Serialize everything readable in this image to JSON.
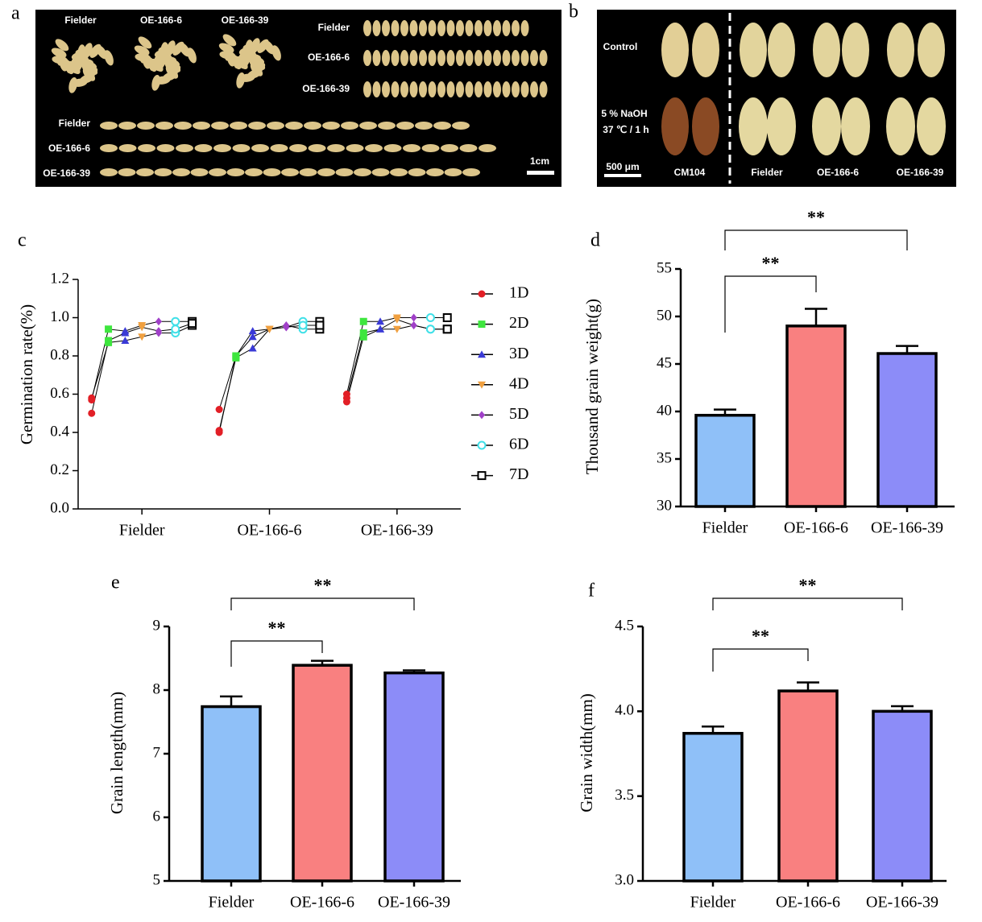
{
  "photos": {
    "a": {
      "label": "a",
      "labels": [
        "Fielder",
        "OE-166-6",
        "OE-166-39",
        "Fielder",
        "OE-166-6",
        "OE-166-39",
        "Fielder",
        "OE-166-6",
        "OE-166-39",
        "1cm"
      ]
    },
    "b": {
      "label": "b",
      "labels": [
        "Control",
        "5 % NaOH",
        "37 ℃ / 1 h",
        "500 μm",
        "CM104",
        "Fielder",
        "OE-166-6",
        "OE-166-39"
      ]
    }
  },
  "chart_data": [
    {
      "label": "c",
      "type": "scatter",
      "ylabel": "Germination rate(%)",
      "categories": [
        "Fielder",
        "OE-166-6",
        "OE-166-39"
      ],
      "ylim": [
        0,
        1.2
      ],
      "yticks": [
        {
          "value": 0,
          "label": "0.0"
        },
        0.2,
        0.4,
        0.6,
        0.8,
        {
          "value": 1,
          "label": "1.0"
        },
        1.2
      ],
      "series": [
        {
          "name": "1D",
          "color": "#e21f26",
          "marker": "circle",
          "values": [
            [
              0.57,
              0.58,
              0.5
            ],
            [
              0.52,
              0.41,
              0.4
            ],
            [
              0.6,
              0.56,
              0.58
            ]
          ]
        },
        {
          "name": "2D",
          "color": "#3ee63e",
          "marker": "square",
          "values": [
            [
              0.94,
              0.87,
              0.88
            ],
            [
              0.8,
              0.79,
              0.8
            ],
            [
              0.98,
              0.9,
              0.92
            ]
          ]
        },
        {
          "name": "3D",
          "color": "#3a3ad6",
          "marker": "triangle",
          "values": [
            [
              0.93,
              0.88,
              0.92
            ],
            [
              0.93,
              0.84,
              0.9
            ],
            [
              0.98,
              0.94,
              0.94
            ]
          ]
        },
        {
          "name": "4D",
          "color": "#f0a040",
          "marker": "triangle-down",
          "values": [
            [
              0.96,
              0.9,
              0.95
            ],
            [
              0.94,
              0.94,
              0.94
            ],
            [
              1.0,
              0.94,
              0.99
            ]
          ]
        },
        {
          "name": "5D",
          "color": "#a040c8",
          "marker": "diamond",
          "values": [
            [
              0.98,
              0.92,
              0.93
            ],
            [
              0.95,
              0.96,
              0.95
            ],
            [
              1.0,
              0.96,
              0.96
            ]
          ]
        },
        {
          "name": "6D",
          "color": "#40e0e8",
          "marker": "circle-open",
          "values": [
            [
              0.98,
              0.92,
              0.94
            ],
            [
              0.98,
              0.94,
              0.96
            ],
            [
              1.0,
              0.94,
              0.94
            ]
          ]
        },
        {
          "name": "7D",
          "color": "#000000",
          "marker": "square-open",
          "values": [
            [
              0.98,
              0.96,
              0.97
            ],
            [
              0.98,
              0.94,
              0.96
            ],
            [
              1.0,
              0.94,
              0.94
            ]
          ]
        }
      ]
    },
    {
      "label": "d",
      "type": "bar",
      "ylabel": "Thousand grain weight(g)",
      "categories": [
        "Fielder",
        "OE-166-6",
        "OE-166-39"
      ],
      "values": [
        39.6,
        49.0,
        46.1
      ],
      "errors": [
        0.6,
        1.8,
        0.8
      ],
      "colors": [
        "#8fc0f8",
        "#f98080",
        "#8c8cf8"
      ],
      "ylim": [
        30,
        55
      ],
      "yticks": [
        30,
        35,
        40,
        45,
        50,
        55
      ],
      "significance": [
        {
          "pair": [
            "Fielder",
            "OE-166-6"
          ],
          "label": "**"
        },
        {
          "pair": [
            "Fielder",
            "OE-166-39"
          ],
          "label": "**"
        }
      ]
    },
    {
      "label": "e",
      "type": "bar",
      "ylabel": "Grain length(mm)",
      "categories": [
        "Fielder",
        "OE-166-6",
        "OE-166-39"
      ],
      "values": [
        7.74,
        8.39,
        8.27
      ],
      "errors": [
        0.16,
        0.07,
        0.04
      ],
      "colors": [
        "#8fc0f8",
        "#f98080",
        "#8c8cf8"
      ],
      "ylim": [
        5,
        9
      ],
      "yticks": [
        5,
        6,
        7,
        8,
        9
      ],
      "significance": [
        {
          "pair": [
            "Fielder",
            "OE-166-6"
          ],
          "label": "**"
        },
        {
          "pair": [
            "Fielder",
            "OE-166-39"
          ],
          "label": "**"
        }
      ]
    },
    {
      "label": "f",
      "type": "bar",
      "ylabel": "Grain width(mm)",
      "categories": [
        "Fielder",
        "OE-166-6",
        "OE-166-39"
      ],
      "values": [
        3.87,
        4.12,
        4.0
      ],
      "errors": [
        0.04,
        0.05,
        0.03
      ],
      "colors": [
        "#8fc0f8",
        "#f98080",
        "#8c8cf8"
      ],
      "ylim": [
        3.0,
        4.5
      ],
      "yticks": [
        {
          "value": 3,
          "label": "3.0"
        },
        3.5,
        {
          "value": 4,
          "label": "4.0"
        },
        4.5
      ],
      "significance": [
        {
          "pair": [
            "Fielder",
            "OE-166-6"
          ],
          "label": "**"
        },
        {
          "pair": [
            "Fielder",
            "OE-166-39"
          ],
          "label": "**"
        }
      ]
    }
  ]
}
